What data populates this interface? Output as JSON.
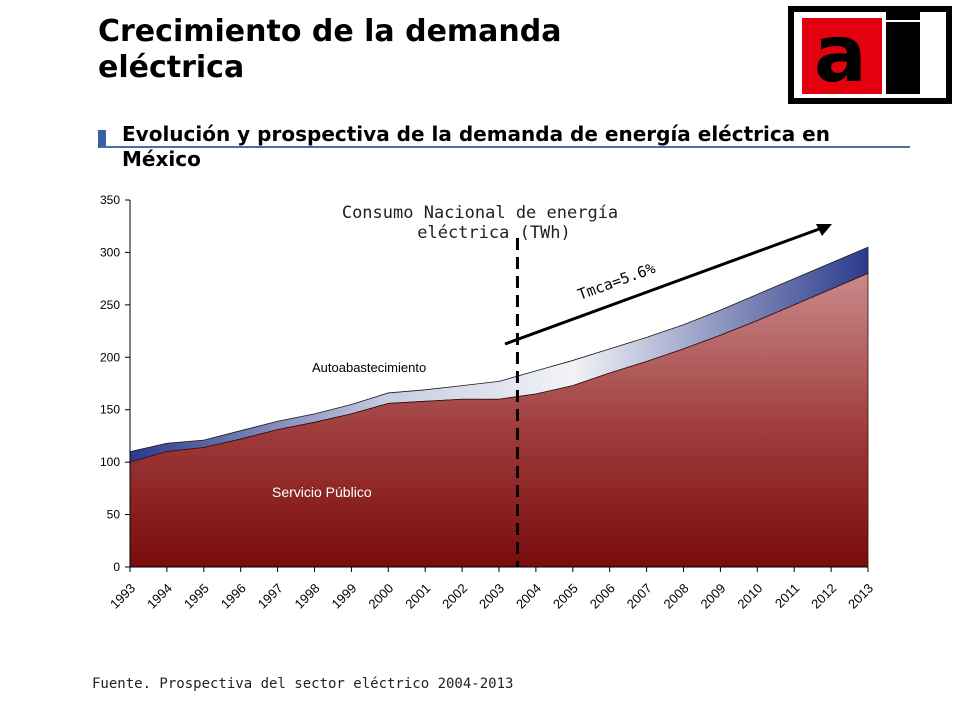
{
  "header": {
    "title": "Crecimiento de la demanda eléctrica",
    "subtitle": "Evolución y prospectiva de la demanda de energía eléctrica en México"
  },
  "logo": {
    "text_a": "a",
    "text_i": "i",
    "colors": {
      "red": "#e3000f",
      "black": "#000000"
    }
  },
  "footer": {
    "source": "Fuente. Prospectiva del sector eléctrico 2004-2013"
  },
  "chart_data": {
    "type": "area",
    "title": "Consumo Nacional de energía eléctrica (TWh)",
    "title_lines": [
      "Consumo Nacional de energía",
      "eléctrica (TWh)"
    ],
    "x": [
      "1993",
      "1994",
      "1995",
      "1996",
      "1997",
      "1998",
      "1999",
      "2000",
      "2001",
      "2002",
      "2003",
      "2004",
      "2005",
      "2006",
      "2007",
      "2008",
      "2009",
      "2010",
      "2011",
      "2012",
      "2013"
    ],
    "ylim": [
      0,
      350
    ],
    "yticks": [
      0,
      50,
      100,
      150,
      200,
      250,
      300,
      350
    ],
    "series": [
      {
        "name": "Servicio Público",
        "values": [
          100,
          110,
          114,
          122,
          131,
          138,
          146,
          156,
          158,
          160,
          160,
          165,
          173,
          185,
          196,
          208,
          221,
          235,
          250,
          265,
          280
        ],
        "color": "#8b1a1a"
      },
      {
        "name": "Autoabastecimiento",
        "values": [
          110,
          118,
          121,
          130,
          139,
          146,
          155,
          166,
          169,
          173,
          177,
          187,
          197,
          208,
          219,
          231,
          245,
          260,
          275,
          290,
          305
        ],
        "color": "#2b3a8c"
      }
    ],
    "divider_year": "2003",
    "annotations": {
      "growth": "Tmca=5.6%",
      "public": "Servicio Público",
      "self": "Autoabastecimiento"
    }
  }
}
